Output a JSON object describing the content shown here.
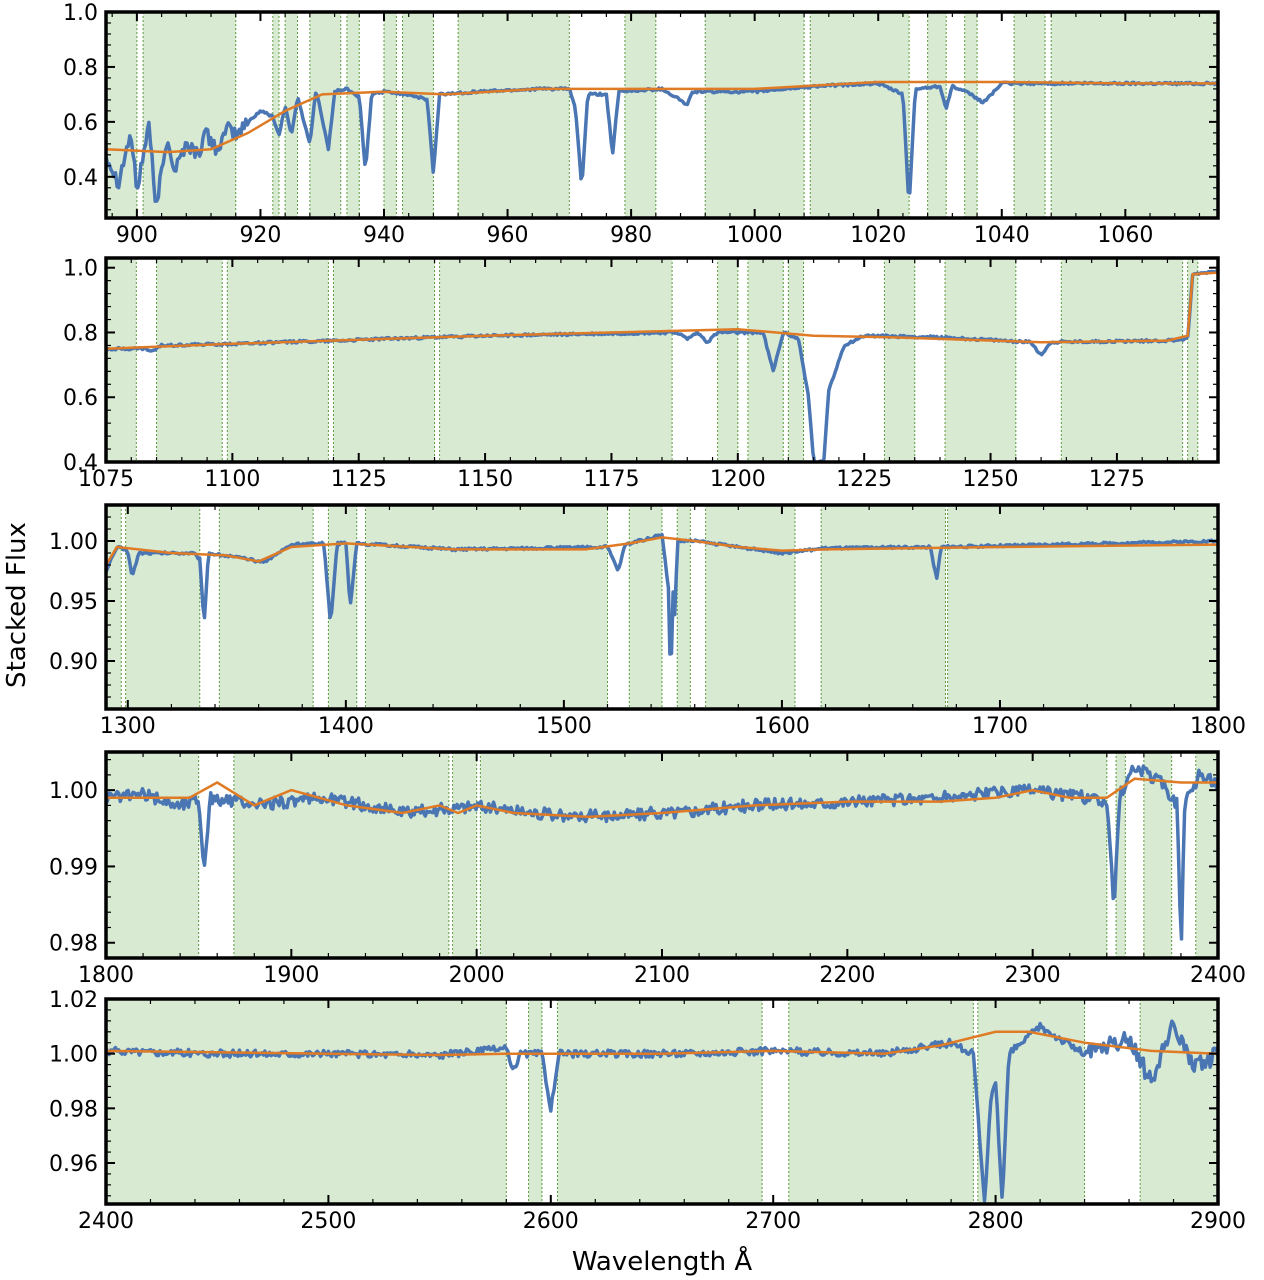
{
  "figure": {
    "ylabel": "Stacked Flux",
    "xlabel": "Wavelength Å"
  },
  "colors": {
    "flux": "#4a76b3",
    "continuum": "#e07b25",
    "band": "#d9ead3",
    "band_edge": "#5a9a3e"
  },
  "chart_data": [
    {
      "type": "line",
      "xlim": [
        895,
        1075
      ],
      "ylim": [
        0.25,
        1.0
      ],
      "xticks": [
        900,
        920,
        940,
        960,
        980,
        1000,
        1020,
        1040,
        1060
      ],
      "yticks": [
        0.4,
        0.6,
        0.8,
        1.0
      ],
      "ytick_labels": [
        "0.4",
        "0.6",
        "0.8",
        "1.0"
      ],
      "bands": [
        [
          895,
          900
        ],
        [
          901,
          916
        ],
        [
          922,
          923
        ],
        [
          924,
          926
        ],
        [
          928,
          933
        ],
        [
          934,
          936
        ],
        [
          940,
          942
        ],
        [
          943,
          948
        ],
        [
          952,
          970
        ],
        [
          979,
          984
        ],
        [
          992,
          1008
        ],
        [
          1009,
          1025
        ],
        [
          1028,
          1031
        ],
        [
          1034,
          1036
        ],
        [
          1042,
          1047
        ],
        [
          1048,
          1075
        ]
      ],
      "continuum": [
        [
          895,
          0.5
        ],
        [
          905,
          0.49
        ],
        [
          912,
          0.5
        ],
        [
          918,
          0.56
        ],
        [
          924,
          0.64
        ],
        [
          930,
          0.7
        ],
        [
          940,
          0.71
        ],
        [
          950,
          0.7
        ],
        [
          965,
          0.72
        ],
        [
          985,
          0.72
        ],
        [
          1000,
          0.72
        ],
        [
          1020,
          0.745
        ],
        [
          1040,
          0.745
        ],
        [
          1060,
          0.74
        ],
        [
          1075,
          0.74
        ]
      ],
      "flux": [
        [
          895,
          0.48
        ],
        [
          897,
          0.38
        ],
        [
          899,
          0.56
        ],
        [
          900,
          0.35
        ],
        [
          902,
          0.6
        ],
        [
          903,
          0.28
        ],
        [
          905,
          0.55
        ],
        [
          906,
          0.42
        ],
        [
          908,
          0.52
        ],
        [
          910,
          0.48
        ],
        [
          911,
          0.56
        ],
        [
          913,
          0.5
        ],
        [
          915,
          0.58
        ],
        [
          916,
          0.55
        ],
        [
          918,
          0.6
        ],
        [
          920,
          0.64
        ],
        [
          922,
          0.62
        ],
        [
          923,
          0.55
        ],
        [
          924,
          0.66
        ],
        [
          925,
          0.55
        ],
        [
          926,
          0.69
        ],
        [
          928,
          0.52
        ],
        [
          929,
          0.72
        ],
        [
          931,
          0.5
        ],
        [
          932,
          0.71
        ],
        [
          934,
          0.72
        ],
        [
          936,
          0.69
        ],
        [
          937,
          0.42
        ],
        [
          938,
          0.7
        ],
        [
          940,
          0.71
        ],
        [
          944,
          0.7
        ],
        [
          947,
          0.68
        ],
        [
          948,
          0.41
        ],
        [
          949,
          0.7
        ],
        [
          955,
          0.71
        ],
        [
          965,
          0.72
        ],
        [
          970,
          0.72
        ],
        [
          971,
          0.65
        ],
        [
          972,
          0.36
        ],
        [
          973,
          0.7
        ],
        [
          976,
          0.7
        ],
        [
          977,
          0.48
        ],
        [
          978,
          0.71
        ],
        [
          985,
          0.72
        ],
        [
          988,
          0.68
        ],
        [
          989,
          0.66
        ],
        [
          990,
          0.71
        ],
        [
          1000,
          0.71
        ],
        [
          1010,
          0.73
        ],
        [
          1020,
          0.74
        ],
        [
          1024,
          0.7
        ],
        [
          1025,
          0.29
        ],
        [
          1026,
          0.72
        ],
        [
          1030,
          0.73
        ],
        [
          1031,
          0.65
        ],
        [
          1032,
          0.73
        ],
        [
          1035,
          0.7
        ],
        [
          1037,
          0.67
        ],
        [
          1040,
          0.74
        ],
        [
          1060,
          0.74
        ],
        [
          1075,
          0.74
        ]
      ]
    },
    {
      "type": "line",
      "xlim": [
        1075,
        1295
      ],
      "ylim": [
        0.4,
        1.03
      ],
      "xticks": [
        1075,
        1100,
        1125,
        1150,
        1175,
        1200,
        1225,
        1250,
        1275
      ],
      "yticks": [
        0.4,
        0.6,
        0.8,
        1.0
      ],
      "ytick_labels": [
        "0.4",
        "0.6",
        "0.8",
        "1.0"
      ],
      "bands": [
        [
          1075,
          1081
        ],
        [
          1085,
          1098
        ],
        [
          1099,
          1119
        ],
        [
          1120,
          1140
        ],
        [
          1141,
          1187
        ],
        [
          1196,
          1200
        ],
        [
          1202,
          1209
        ],
        [
          1210,
          1213
        ],
        [
          1229,
          1235
        ],
        [
          1241,
          1255
        ],
        [
          1264,
          1288
        ],
        [
          1289,
          1291
        ]
      ],
      "continuum": [
        [
          1075,
          0.75
        ],
        [
          1100,
          0.765
        ],
        [
          1150,
          0.79
        ],
        [
          1200,
          0.81
        ],
        [
          1215,
          0.79
        ],
        [
          1230,
          0.785
        ],
        [
          1260,
          0.77
        ],
        [
          1285,
          0.775
        ],
        [
          1289,
          0.79
        ],
        [
          1290,
          0.98
        ],
        [
          1295,
          0.985
        ]
      ],
      "flux": [
        [
          1075,
          0.75
        ],
        [
          1083,
          0.75
        ],
        [
          1084,
          0.74
        ],
        [
          1086,
          0.76
        ],
        [
          1100,
          0.765
        ],
        [
          1150,
          0.79
        ],
        [
          1188,
          0.8
        ],
        [
          1190,
          0.78
        ],
        [
          1192,
          0.8
        ],
        [
          1194,
          0.77
        ],
        [
          1196,
          0.8
        ],
        [
          1205,
          0.8
        ],
        [
          1207,
          0.68
        ],
        [
          1209,
          0.8
        ],
        [
          1212,
          0.78
        ],
        [
          1214,
          0.6
        ],
        [
          1215,
          0.4
        ],
        [
          1217,
          0.4
        ],
        [
          1218,
          0.62
        ],
        [
          1221,
          0.76
        ],
        [
          1225,
          0.79
        ],
        [
          1240,
          0.785
        ],
        [
          1258,
          0.77
        ],
        [
          1260,
          0.73
        ],
        [
          1262,
          0.77
        ],
        [
          1285,
          0.775
        ],
        [
          1289,
          0.78
        ],
        [
          1290,
          0.98
        ],
        [
          1295,
          0.99
        ]
      ]
    },
    {
      "type": "line",
      "xlim": [
        1290,
        1800
      ],
      "ylim": [
        0.86,
        1.03
      ],
      "xticks": [
        1300,
        1400,
        1500,
        1600,
        1700,
        1800
      ],
      "yticks": [
        0.9,
        0.95,
        1.0
      ],
      "ytick_labels": [
        "0.90",
        "0.95",
        "1.00"
      ],
      "bands": [
        [
          1290,
          1297
        ],
        [
          1299,
          1333
        ],
        [
          1342,
          1385
        ],
        [
          1392,
          1405
        ],
        [
          1409,
          1520
        ],
        [
          1530,
          1545
        ],
        [
          1552,
          1558
        ],
        [
          1565,
          1606
        ],
        [
          1618,
          1675
        ],
        [
          1676,
          1800
        ]
      ],
      "continuum": [
        [
          1290,
          0.98
        ],
        [
          1295,
          0.995
        ],
        [
          1320,
          0.99
        ],
        [
          1345,
          0.988
        ],
        [
          1360,
          0.983
        ],
        [
          1375,
          0.995
        ],
        [
          1400,
          0.998
        ],
        [
          1450,
          0.993
        ],
        [
          1510,
          0.993
        ],
        [
          1530,
          0.998
        ],
        [
          1545,
          1.003
        ],
        [
          1560,
          1.0
        ],
        [
          1580,
          0.995
        ],
        [
          1600,
          0.992
        ],
        [
          1620,
          0.993
        ],
        [
          1700,
          0.995
        ],
        [
          1800,
          0.997
        ]
      ],
      "flux": [
        [
          1290,
          0.975
        ],
        [
          1295,
          0.995
        ],
        [
          1300,
          0.992
        ],
        [
          1302,
          0.97
        ],
        [
          1305,
          0.99
        ],
        [
          1330,
          0.99
        ],
        [
          1333,
          0.985
        ],
        [
          1335,
          0.93
        ],
        [
          1337,
          0.99
        ],
        [
          1355,
          0.985
        ],
        [
          1362,
          0.982
        ],
        [
          1375,
          0.997
        ],
        [
          1390,
          0.998
        ],
        [
          1393,
          0.93
        ],
        [
          1396,
          0.998
        ],
        [
          1400,
          0.998
        ],
        [
          1402,
          0.945
        ],
        [
          1405,
          0.998
        ],
        [
          1450,
          0.993
        ],
        [
          1520,
          0.995
        ],
        [
          1525,
          0.975
        ],
        [
          1528,
          0.997
        ],
        [
          1545,
          1.005
        ],
        [
          1548,
          0.96
        ],
        [
          1549,
          0.875
        ],
        [
          1550,
          0.96
        ],
        [
          1551,
          0.935
        ],
        [
          1552,
          1.0
        ],
        [
          1560,
          1.0
        ],
        [
          1600,
          0.99
        ],
        [
          1620,
          0.994
        ],
        [
          1668,
          0.995
        ],
        [
          1671,
          0.968
        ],
        [
          1673,
          0.995
        ],
        [
          1700,
          0.996
        ],
        [
          1800,
          1.0
        ]
      ]
    },
    {
      "type": "line",
      "xlim": [
        1800,
        2400
      ],
      "ylim": [
        0.978,
        1.005
      ],
      "xticks": [
        1800,
        1900,
        2000,
        2100,
        2200,
        2300,
        2400
      ],
      "yticks": [
        0.98,
        0.99,
        1.0
      ],
      "ytick_labels": [
        "0.98",
        "0.99",
        "1.00"
      ],
      "bands": [
        [
          1800,
          1850
        ],
        [
          1869,
          1985
        ],
        [
          1987,
          2000
        ],
        [
          2002,
          2340
        ],
        [
          2345,
          2350
        ],
        [
          2360,
          2375
        ],
        [
          2388,
          2400
        ]
      ],
      "continuum": [
        [
          1800,
          0.999
        ],
        [
          1845,
          0.999
        ],
        [
          1860,
          1.001
        ],
        [
          1880,
          0.998
        ],
        [
          1900,
          1.0
        ],
        [
          1930,
          0.998
        ],
        [
          1960,
          0.997
        ],
        [
          1980,
          0.998
        ],
        [
          1990,
          0.997
        ],
        [
          2000,
          0.998
        ],
        [
          2020,
          0.997
        ],
        [
          2060,
          0.9965
        ],
        [
          2100,
          0.997
        ],
        [
          2150,
          0.998
        ],
        [
          2200,
          0.9985
        ],
        [
          2250,
          0.9985
        ],
        [
          2280,
          0.999
        ],
        [
          2300,
          1.0
        ],
        [
          2320,
          0.999
        ],
        [
          2340,
          0.999
        ],
        [
          2355,
          1.0015
        ],
        [
          2380,
          1.001
        ],
        [
          2400,
          1.001
        ]
      ],
      "flux": [
        [
          1800,
          0.999
        ],
        [
          1820,
          0.9995
        ],
        [
          1840,
          0.998
        ],
        [
          1850,
          0.999
        ],
        [
          1853,
          0.9895
        ],
        [
          1856,
          0.999
        ],
        [
          1880,
          0.998
        ],
        [
          1920,
          0.999
        ],
        [
          1960,
          0.997
        ],
        [
          2000,
          0.998
        ],
        [
          2050,
          0.9965
        ],
        [
          2100,
          0.997
        ],
        [
          2150,
          0.998
        ],
        [
          2200,
          0.9985
        ],
        [
          2250,
          0.999
        ],
        [
          2300,
          1.0
        ],
        [
          2330,
          0.999
        ],
        [
          2340,
          0.998
        ],
        [
          2344,
          0.9845
        ],
        [
          2347,
          0.9995
        ],
        [
          2355,
          1.003
        ],
        [
          2370,
          1.001
        ],
        [
          2378,
          0.998
        ],
        [
          2380,
          0.9785
        ],
        [
          2382,
          0.998
        ],
        [
          2390,
          1.002
        ],
        [
          2400,
          1.001
        ]
      ]
    },
    {
      "type": "line",
      "xlim": [
        2400,
        2900
      ],
      "ylim": [
        0.945,
        1.02
      ],
      "xticks": [
        2400,
        2500,
        2600,
        2700,
        2800,
        2900
      ],
      "yticks": [
        0.96,
        0.98,
        1.0,
        1.02
      ],
      "ytick_labels": [
        "0.96",
        "0.98",
        "1.00",
        "1.02"
      ],
      "bands": [
        [
          2400,
          2580
        ],
        [
          2590,
          2596
        ],
        [
          2603,
          2695
        ],
        [
          2707,
          2790
        ],
        [
          2792,
          2840
        ],
        [
          2865,
          2900
        ]
      ],
      "continuum": [
        [
          2400,
          1.001
        ],
        [
          2500,
          1.0
        ],
        [
          2550,
          0.9995
        ],
        [
          2580,
          1.0
        ],
        [
          2600,
          1.0
        ],
        [
          2650,
          1.0
        ],
        [
          2700,
          1.001
        ],
        [
          2750,
          1.0
        ],
        [
          2775,
          1.003
        ],
        [
          2800,
          1.008
        ],
        [
          2815,
          1.008
        ],
        [
          2840,
          1.004
        ],
        [
          2870,
          1.001
        ],
        [
          2900,
          1.0
        ]
      ],
      "flux": [
        [
          2400,
          1.001
        ],
        [
          2450,
          1.0
        ],
        [
          2500,
          1.0
        ],
        [
          2550,
          0.9995
        ],
        [
          2580,
          1.002
        ],
        [
          2583,
          0.993
        ],
        [
          2586,
          1.0
        ],
        [
          2596,
          1.0
        ],
        [
          2600,
          0.98
        ],
        [
          2604,
          1.0
        ],
        [
          2650,
          1.0
        ],
        [
          2700,
          1.001
        ],
        [
          2750,
          1.0
        ],
        [
          2780,
          1.004
        ],
        [
          2790,
          1.0
        ],
        [
          2795,
          0.945
        ],
        [
          2798,
          0.985
        ],
        [
          2800,
          0.99
        ],
        [
          2803,
          0.945
        ],
        [
          2806,
          1.0
        ],
        [
          2820,
          1.01
        ],
        [
          2840,
          1.0
        ],
        [
          2860,
          1.005
        ],
        [
          2870,
          0.99
        ],
        [
          2880,
          1.01
        ],
        [
          2890,
          0.995
        ],
        [
          2900,
          1.0
        ]
      ]
    }
  ]
}
